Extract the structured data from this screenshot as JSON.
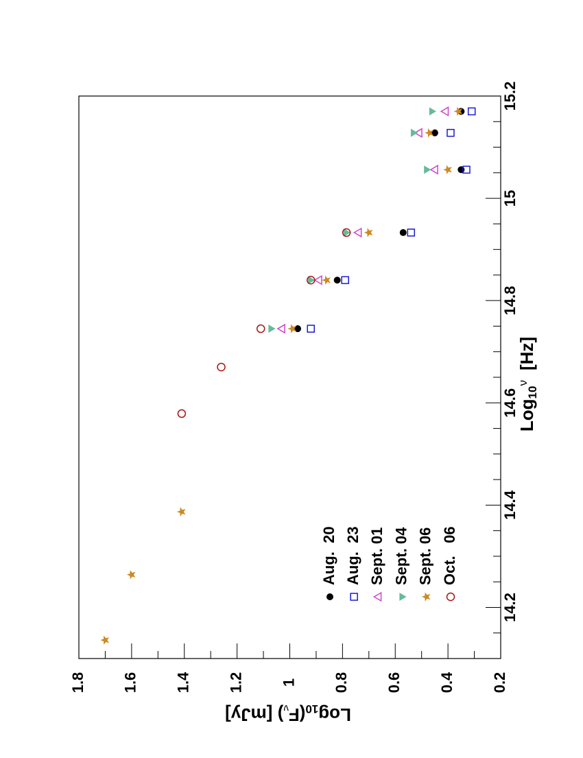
{
  "chart_data": {
    "type": "scatter",
    "x_label": [
      "Log",
      "10",
      "ν",
      "[Hz]"
    ],
    "y_label": [
      "Log",
      "10",
      "(F",
      "ν",
      ")  [mJy]"
    ],
    "xlim": [
      14.1,
      15.2
    ],
    "xticks": [
      14.2,
      14.4,
      14.6,
      14.8,
      15,
      15.2
    ],
    "ylim": [
      0.2,
      1.8
    ],
    "yticks": [
      0.2,
      0.4,
      0.6,
      0.8,
      1,
      1.2,
      1.4,
      1.6,
      1.8
    ],
    "series": [
      {
        "name": "Aug.  20",
        "color": "#000000",
        "marker": "dot",
        "x": [
          14.745,
          14.84,
          14.933,
          15.056,
          15.128,
          15.17
        ],
        "values": [
          0.97,
          0.82,
          0.57,
          0.35,
          0.45,
          0.35
        ]
      },
      {
        "name": "Aug.  23",
        "color": "#1a1ad0",
        "marker": "square",
        "x": [
          14.745,
          14.84,
          14.933,
          15.056,
          15.128,
          15.17
        ],
        "values": [
          0.92,
          0.79,
          0.54,
          0.33,
          0.39,
          0.31
        ]
      },
      {
        "name": "Sept. 01",
        "color": "#cc44cc",
        "marker": "open-triangle",
        "x": [
          14.745,
          14.84,
          14.933,
          15.056,
          15.128,
          15.17
        ],
        "values": [
          1.03,
          0.89,
          0.74,
          0.45,
          0.51,
          0.41
        ]
      },
      {
        "name": "Sept. 04",
        "color": "#66bb99",
        "marker": "filled-triangle-down",
        "x": [
          14.745,
          14.84,
          14.933,
          15.056,
          15.128,
          15.17
        ],
        "values": [
          1.07,
          0.92,
          0.785,
          0.48,
          0.53,
          0.46
        ]
      },
      {
        "name": "Sept. 06",
        "color": "#cc8a22",
        "marker": "star",
        "x": [
          14.136,
          14.264,
          14.387,
          14.745,
          14.84,
          14.933,
          15.056,
          15.128,
          15.17
        ],
        "values": [
          1.7,
          1.6,
          1.41,
          0.99,
          0.86,
          0.7,
          0.4,
          0.47,
          0.36
        ]
      },
      {
        "name": "Oct.   06",
        "color": "#aa1111",
        "marker": "open-circle",
        "x": [
          14.579,
          14.67,
          14.745,
          14.84,
          14.933
        ],
        "values": [
          1.41,
          1.26,
          1.11,
          0.92,
          0.785
        ]
      }
    ]
  }
}
